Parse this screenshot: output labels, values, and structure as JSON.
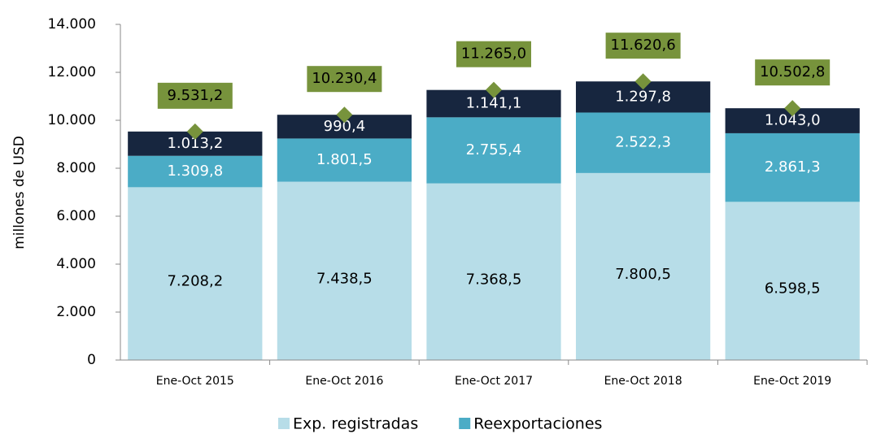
{
  "chart_data": {
    "type": "stacked_bar",
    "y_label": "millones de  USD",
    "categories": [
      "Ene-Oct 2015",
      "Ene-Oct 2016",
      "Ene-Oct 2017",
      "Ene-Oct 2018",
      "Ene-Oct 2019"
    ],
    "series": [
      {
        "name": "Exp. registradas",
        "color": "#b7dde8",
        "label_color": "#000000",
        "values": [
          7208.2,
          7438.5,
          7368.5,
          7800.5,
          6598.5
        ],
        "value_labels": [
          "7.208,2",
          "7.438,5",
          "7.368,5",
          "7.800,5",
          "6.598,5"
        ]
      },
      {
        "name": "Reexportaciones",
        "color": "#4bacc6",
        "label_color": "#ffffff",
        "values": [
          1309.8,
          1801.5,
          2755.4,
          2522.3,
          2861.3
        ],
        "value_labels": [
          "1.309,8",
          "1.801,5",
          "2.755,4",
          "2.522,3",
          "2.861,3"
        ]
      },
      {
        "color": "#17263f",
        "label_color": "#ffffff",
        "values": [
          1013.2,
          990.4,
          1141.1,
          1297.8,
          1043.0
        ],
        "value_labels": [
          "1.013,2",
          "990,4",
          "1.141,1",
          "1.297,8",
          "1.043,0"
        ]
      }
    ],
    "totals": {
      "color": "#77933c",
      "values": [
        9531.2,
        10230.4,
        11265.0,
        11620.6,
        10502.8
      ],
      "value_labels": [
        "9.531,2",
        "10.230,4",
        "11.265,0",
        "11.620,6",
        "10.502,8"
      ]
    },
    "ylim": [
      0,
      14000
    ],
    "yticks": [
      0,
      {
        "value": 2000,
        "label": "2.000"
      },
      {
        "value": 4000,
        "label": "4.000"
      },
      {
        "value": 6000,
        "label": "6.000"
      },
      {
        "value": 8000,
        "label": "8.000"
      },
      {
        "value": 10000,
        "label": "10.000"
      },
      {
        "value": 12000,
        "label": "12.000"
      },
      {
        "value": 14000,
        "label": "14.000"
      }
    ]
  }
}
